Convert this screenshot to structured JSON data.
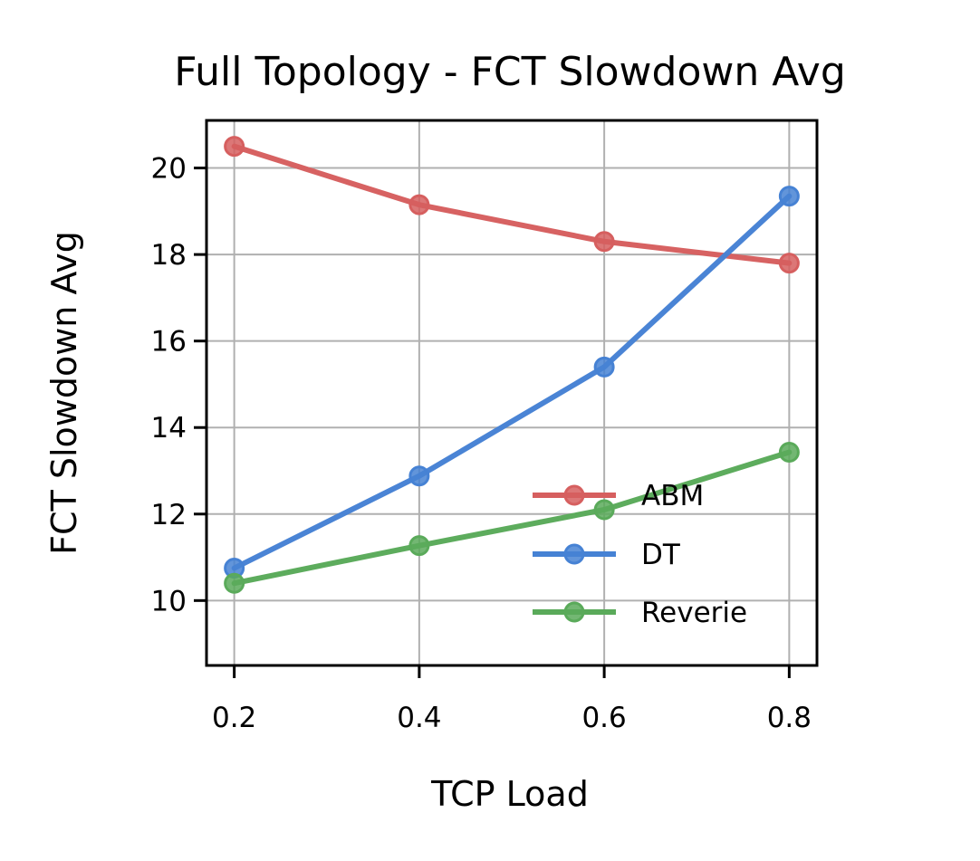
{
  "chart_data": {
    "type": "line",
    "title": "Full Topology - FCT Slowdown Avg",
    "xlabel": "TCP Load",
    "ylabel": "FCT Slowdown Avg",
    "x": [
      0.2,
      0.4,
      0.6,
      0.8
    ],
    "x_tick_labels": [
      "0.2",
      "0.4",
      "0.6",
      "0.8"
    ],
    "y_ticks": [
      10,
      12,
      14,
      16,
      18,
      20
    ],
    "y_tick_labels": [
      "10",
      "12",
      "14",
      "16",
      "18",
      "20"
    ],
    "xlim": [
      0.17,
      0.83
    ],
    "ylim": [
      8.5,
      21.1
    ],
    "grid": true,
    "legend_position": "lower-right",
    "series": [
      {
        "name": "ABM",
        "color": "#d65f5f",
        "values": [
          20.5,
          19.15,
          18.3,
          17.8
        ]
      },
      {
        "name": "DT",
        "color": "#4682d4",
        "values": [
          10.75,
          12.88,
          15.4,
          19.35
        ]
      },
      {
        "name": "Reverie",
        "color": "#5aaa5a",
        "values": [
          10.4,
          11.27,
          12.1,
          13.43
        ]
      }
    ]
  }
}
